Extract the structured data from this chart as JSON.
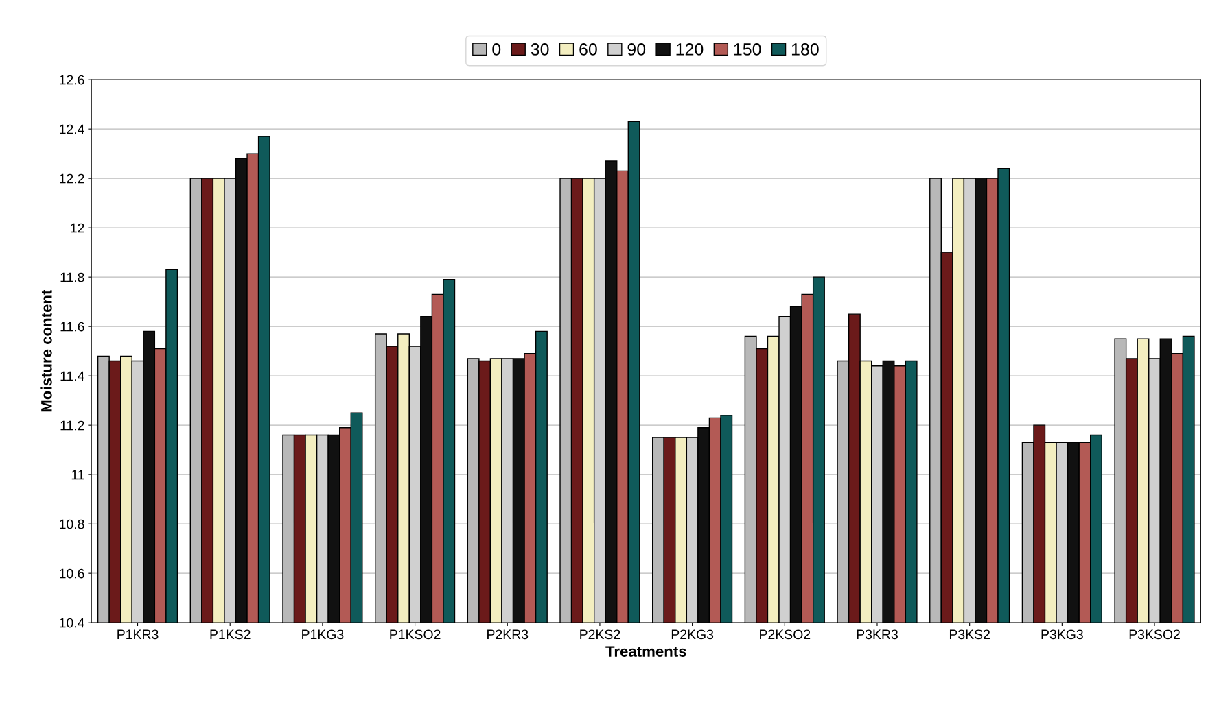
{
  "chart_data": {
    "type": "bar",
    "xlabel": "Treatments",
    "ylabel": "Moisture content",
    "categories": [
      "P1KR3",
      "P1KS2",
      "P1KG3",
      "P1KSO2",
      "P2KR3",
      "P2KS2",
      "P2KG3",
      "P2KSO2",
      "P3KR3",
      "P3KS2",
      "P3KG3",
      "P3KSO2"
    ],
    "series": [
      {
        "name": "0",
        "color": "#b8b8b8",
        "values": [
          11.48,
          12.2,
          11.16,
          11.57,
          11.47,
          12.2,
          11.15,
          11.56,
          11.46,
          12.2,
          11.13,
          11.55
        ]
      },
      {
        "name": "30",
        "color": "#6b1a1a",
        "values": [
          11.46,
          12.2,
          11.16,
          11.52,
          11.46,
          12.2,
          11.15,
          11.51,
          11.65,
          11.9,
          11.2,
          11.47
        ]
      },
      {
        "name": "60",
        "color": "#f3eec0",
        "values": [
          11.48,
          12.2,
          11.16,
          11.57,
          11.47,
          12.2,
          11.15,
          11.56,
          11.46,
          12.2,
          11.13,
          11.55
        ]
      },
      {
        "name": "90",
        "color": "#d0d0d0",
        "values": [
          11.46,
          12.2,
          11.16,
          11.52,
          11.47,
          12.2,
          11.15,
          11.64,
          11.44,
          12.2,
          11.13,
          11.47
        ]
      },
      {
        "name": "120",
        "color": "#111111",
        "values": [
          11.58,
          12.28,
          11.16,
          11.64,
          11.47,
          12.27,
          11.19,
          11.68,
          11.46,
          12.2,
          11.13,
          11.55
        ]
      },
      {
        "name": "150",
        "color": "#b35a55",
        "values": [
          11.51,
          12.3,
          11.19,
          11.73,
          11.49,
          12.23,
          11.23,
          11.73,
          11.44,
          12.2,
          11.13,
          11.49
        ]
      },
      {
        "name": "180",
        "color": "#0f5a5a",
        "values": [
          11.83,
          12.37,
          11.25,
          11.79,
          11.58,
          12.43,
          11.24,
          11.8,
          11.46,
          12.24,
          11.16,
          11.56
        ]
      }
    ],
    "ylim": [
      10.4,
      12.6
    ],
    "yticks": [
      10.4,
      10.6,
      10.8,
      11,
      11.2,
      11.4,
      11.6,
      11.8,
      12,
      12.2,
      12.4,
      12.6
    ],
    "grid": "y",
    "legend": "top"
  }
}
